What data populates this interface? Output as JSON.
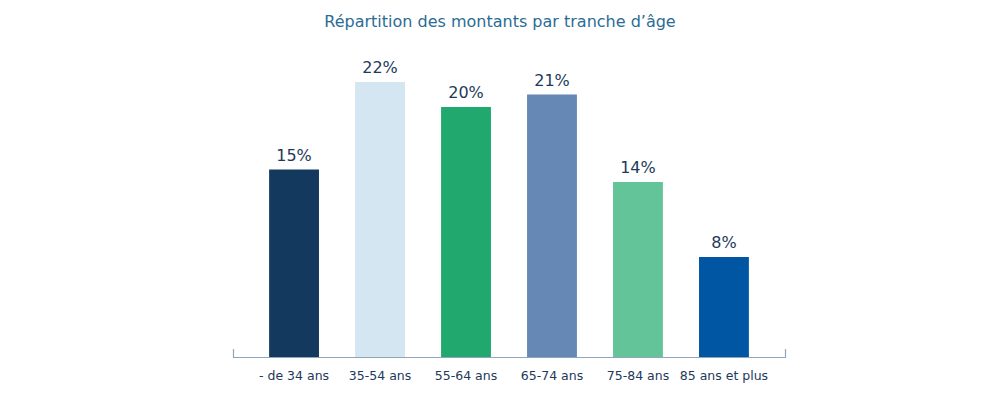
{
  "chart_data": {
    "type": "bar",
    "title": "Répartition des montants par tranche d’âge",
    "categories": [
      "- de 34 ans",
      "35-54 ans",
      "55-64 ans",
      "65-74 ans",
      "75-84 ans",
      "85 ans et plus"
    ],
    "values": [
      15,
      22,
      20,
      21,
      14,
      8
    ],
    "value_labels": [
      "15%",
      "22%",
      "20%",
      "21%",
      "14%",
      "8%"
    ],
    "colors": [
      "#14395e",
      "#d4e6f2",
      "#21a86e",
      "#6688b4",
      "#63c49a",
      "#0056a3"
    ],
    "ylim": [
      0,
      24
    ],
    "data_labels": true,
    "tick_labels": "x",
    "grid": false
  }
}
